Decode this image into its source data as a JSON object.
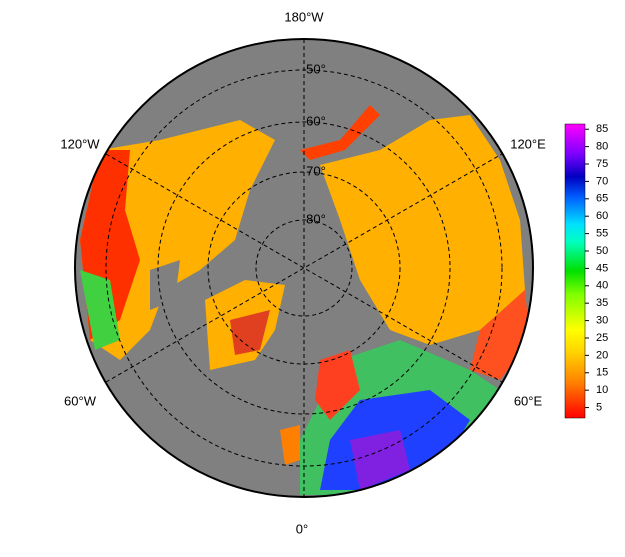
{
  "map": {
    "longitude_labels": [
      "180°W",
      "120°W",
      "120°E",
      "60°W",
      "60°E",
      "0°"
    ],
    "latitude_labels": [
      "50°",
      "60°",
      "70°",
      "80°"
    ]
  },
  "colorbar": {
    "lim": [
      2,
      86.5
    ],
    "ticks": [
      5,
      10,
      15,
      20,
      25,
      30,
      35,
      40,
      45,
      50,
      55,
      60,
      65,
      70,
      75,
      80,
      85
    ]
  }
}
